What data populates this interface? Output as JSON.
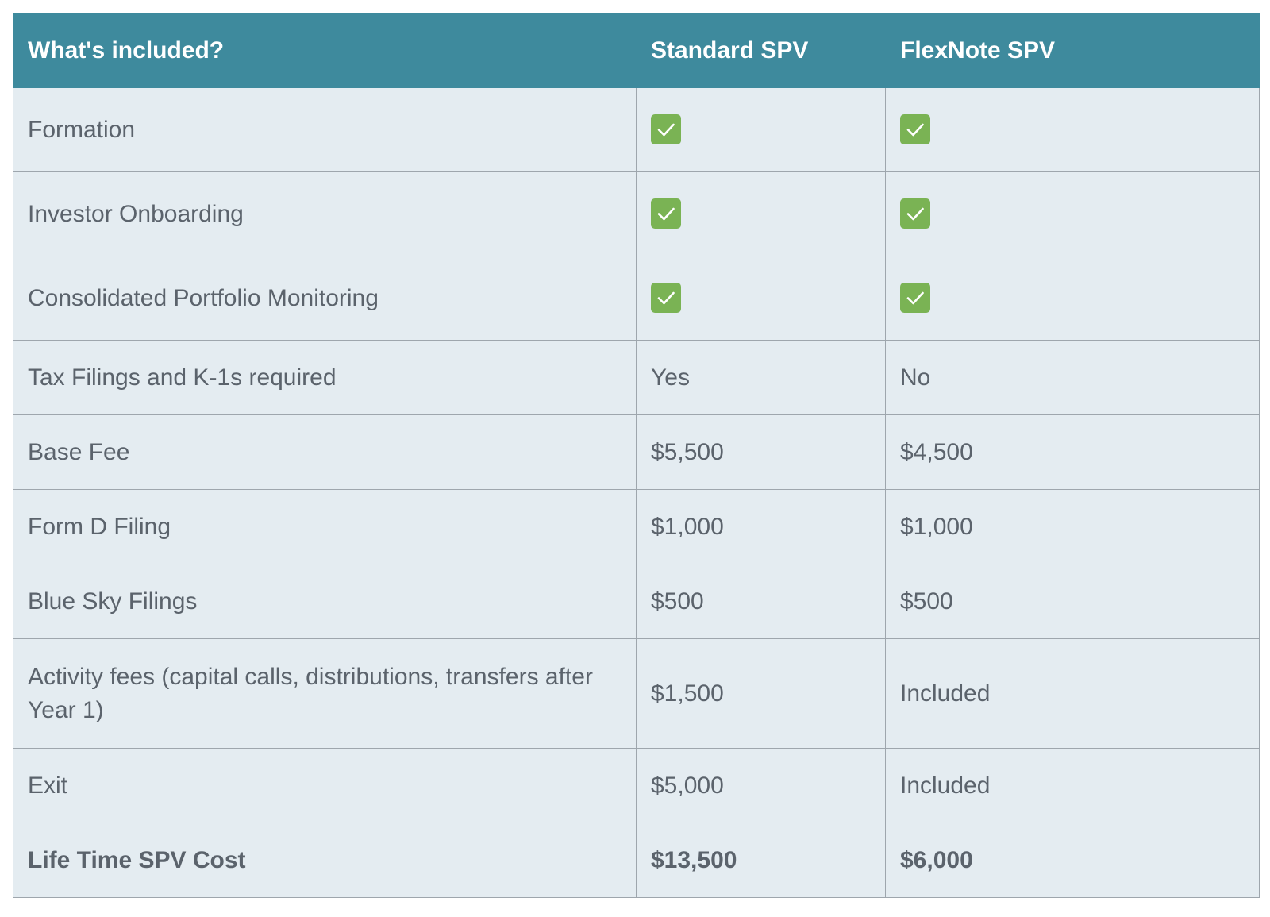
{
  "table": {
    "headers": [
      "What's included?",
      "Standard SPV",
      "FlexNote SPV"
    ],
    "rows": [
      {
        "feature": "Formation",
        "standard": "",
        "flexnote": "",
        "standard_icon": "check-icon",
        "flexnote_icon": "check-icon"
      },
      {
        "feature": "Investor Onboarding",
        "standard": "",
        "flexnote": "",
        "standard_icon": "check-icon",
        "flexnote_icon": "check-icon"
      },
      {
        "feature": "Consolidated Portfolio Monitoring",
        "standard": "",
        "flexnote": "",
        "standard_icon": "check-icon",
        "flexnote_icon": "check-icon"
      },
      {
        "feature": "Tax Filings and K-1s required",
        "standard": "Yes",
        "flexnote": "No"
      },
      {
        "feature": "Base Fee",
        "standard": "$5,500",
        "flexnote": "$4,500"
      },
      {
        "feature": "Form D Filing",
        "standard": "$1,000",
        "flexnote": "$1,000"
      },
      {
        "feature": "Blue Sky Filings",
        "standard": "$500",
        "flexnote": "$500"
      },
      {
        "feature": "Activity fees (capital calls, distributions, transfers after Year 1)",
        "standard": "$1,500",
        "flexnote": "Included"
      },
      {
        "feature": "Exit",
        "standard": "$5,000",
        "flexnote": "Included"
      }
    ],
    "total": {
      "feature": "Life Time SPV Cost",
      "standard": "$13,500",
      "flexnote": "$6,000"
    }
  },
  "colors": {
    "header_bg": "#3e8a9d",
    "row_bg": "#e4ecf1",
    "check_green": "#7ab354",
    "text": "#5b636c"
  }
}
